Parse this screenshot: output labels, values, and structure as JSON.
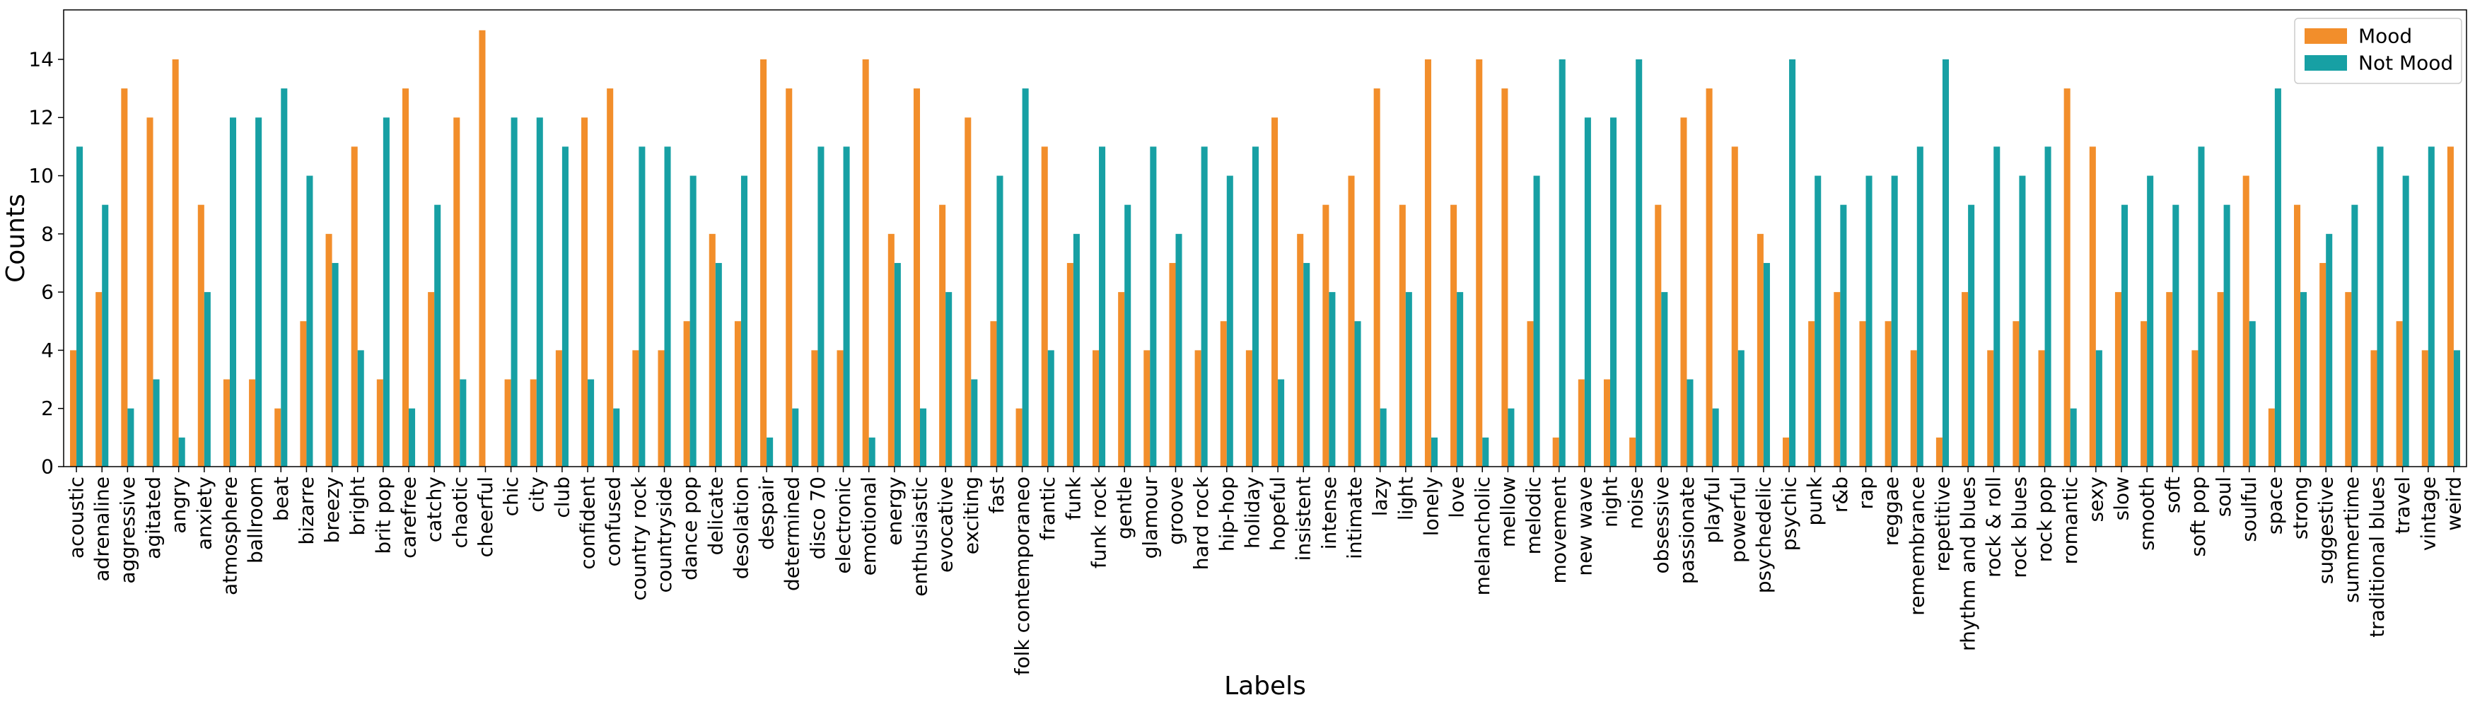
{
  "chart_data": {
    "type": "bar",
    "xlabel": "Labels",
    "ylabel": "Counts",
    "ylim": [
      0,
      15.7
    ],
    "yticks": [
      0,
      2,
      4,
      6,
      8,
      10,
      12,
      14
    ],
    "grid": false,
    "legend_position": "top-right",
    "categories": [
      "acoustic",
      "adrenaline",
      "aggressive",
      "agitated",
      "angry",
      "anxiety",
      "atmosphere",
      "ballroom",
      "beat",
      "bizarre",
      "breezy",
      "bright",
      "brit pop",
      "carefree",
      "catchy",
      "chaotic",
      "cheerful",
      "chic",
      "city",
      "club",
      "confident",
      "confused",
      "country rock",
      "countryside",
      "dance pop",
      "delicate",
      "desolation",
      "despair",
      "determined",
      "disco 70",
      "electronic",
      "emotional",
      "energy",
      "enthusiastic",
      "evocative",
      "exciting",
      "fast",
      "folk contemporaneo",
      "frantic",
      "funk",
      "funk rock",
      "gentle",
      "glamour",
      "groove",
      "hard rock",
      "hip-hop",
      "holiday",
      "hopeful",
      "insistent",
      "intense",
      "intimate",
      "lazy",
      "light",
      "lonely",
      "love",
      "melancholic",
      "mellow",
      "melodic",
      "movement",
      "new wave",
      "night",
      "noise",
      "obsessive",
      "passionate",
      "playful",
      "powerful",
      "psychedelic",
      "psychic",
      "punk",
      "r&b",
      "rap",
      "reggae",
      "remembrance",
      "repetitive",
      "rhythm and blues",
      "rock & roll",
      "rock blues",
      "rock pop",
      "romantic",
      "sexy",
      "slow",
      "smooth",
      "soft",
      "soft pop",
      "soul",
      "soulful",
      "space",
      "strong",
      "suggestive",
      "summertime",
      "traditional blues",
      "travel",
      "vintage",
      "weird"
    ],
    "series": [
      {
        "name": "Mood",
        "color": "#f28e2b",
        "values": [
          4,
          6,
          13,
          12,
          14,
          9,
          3,
          3,
          2,
          5,
          8,
          11,
          3,
          13,
          6,
          12,
          15,
          3,
          3,
          4,
          12,
          13,
          4,
          4,
          5,
          8,
          5,
          14,
          13,
          4,
          4,
          14,
          8,
          13,
          9,
          12,
          5,
          2,
          11,
          7,
          4,
          6,
          4,
          7,
          4,
          5,
          4,
          12,
          8,
          9,
          10,
          13,
          9,
          14,
          9,
          14,
          13,
          5,
          1,
          3,
          3,
          1,
          9,
          12,
          13,
          11,
          8,
          1,
          5,
          6,
          5,
          5,
          4,
          1,
          6,
          4,
          5,
          4,
          13,
          11,
          6,
          5,
          6,
          4,
          6,
          10,
          2,
          9,
          7,
          6,
          4,
          5,
          4,
          11
        ]
      },
      {
        "name": "Not Mood",
        "color": "#17a0a4",
        "values": [
          11,
          9,
          2,
          3,
          1,
          6,
          12,
          12,
          13,
          10,
          7,
          4,
          12,
          2,
          9,
          3,
          0,
          12,
          12,
          11,
          3,
          2,
          11,
          11,
          10,
          7,
          10,
          1,
          2,
          11,
          11,
          1,
          7,
          2,
          6,
          3,
          10,
          13,
          4,
          8,
          11,
          9,
          11,
          8,
          11,
          10,
          11,
          3,
          7,
          6,
          5,
          2,
          6,
          1,
          6,
          1,
          2,
          10,
          14,
          12,
          12,
          14,
          6,
          3,
          2,
          4,
          7,
          14,
          10,
          9,
          10,
          10,
          11,
          14,
          9,
          11,
          10,
          11,
          2,
          4,
          9,
          10,
          9,
          11,
          9,
          5,
          13,
          6,
          8,
          9,
          11,
          10,
          11,
          4
        ]
      }
    ]
  }
}
